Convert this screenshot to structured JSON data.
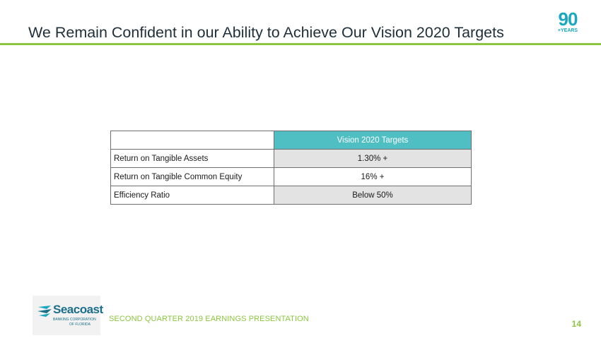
{
  "slide": {
    "title": "We Remain Confident in our Ability to Achieve Our Vision 2020 Targets",
    "accent_color": "#8cc63f",
    "badge": {
      "number": "90",
      "subtitle": "+YEARS",
      "color": "#1aa8c0"
    }
  },
  "table": {
    "header": "Vision 2020 Targets",
    "header_color": "#4fbfc4",
    "rows": [
      {
        "label": "Return on Tangible Assets",
        "value": "1.30% +"
      },
      {
        "label": "Return on Tangible Common Equity",
        "value": "16% +"
      },
      {
        "label": "Efficiency Ratio",
        "value": "Below 50%"
      }
    ]
  },
  "footer": {
    "logo": {
      "name": "Seacoast",
      "line1": "BANKING CORPORATION",
      "line2": "OF FLORIDA"
    },
    "text": "SECOND QUARTER 2019 EARNINGS PRESENTATION",
    "page_number": "14"
  }
}
